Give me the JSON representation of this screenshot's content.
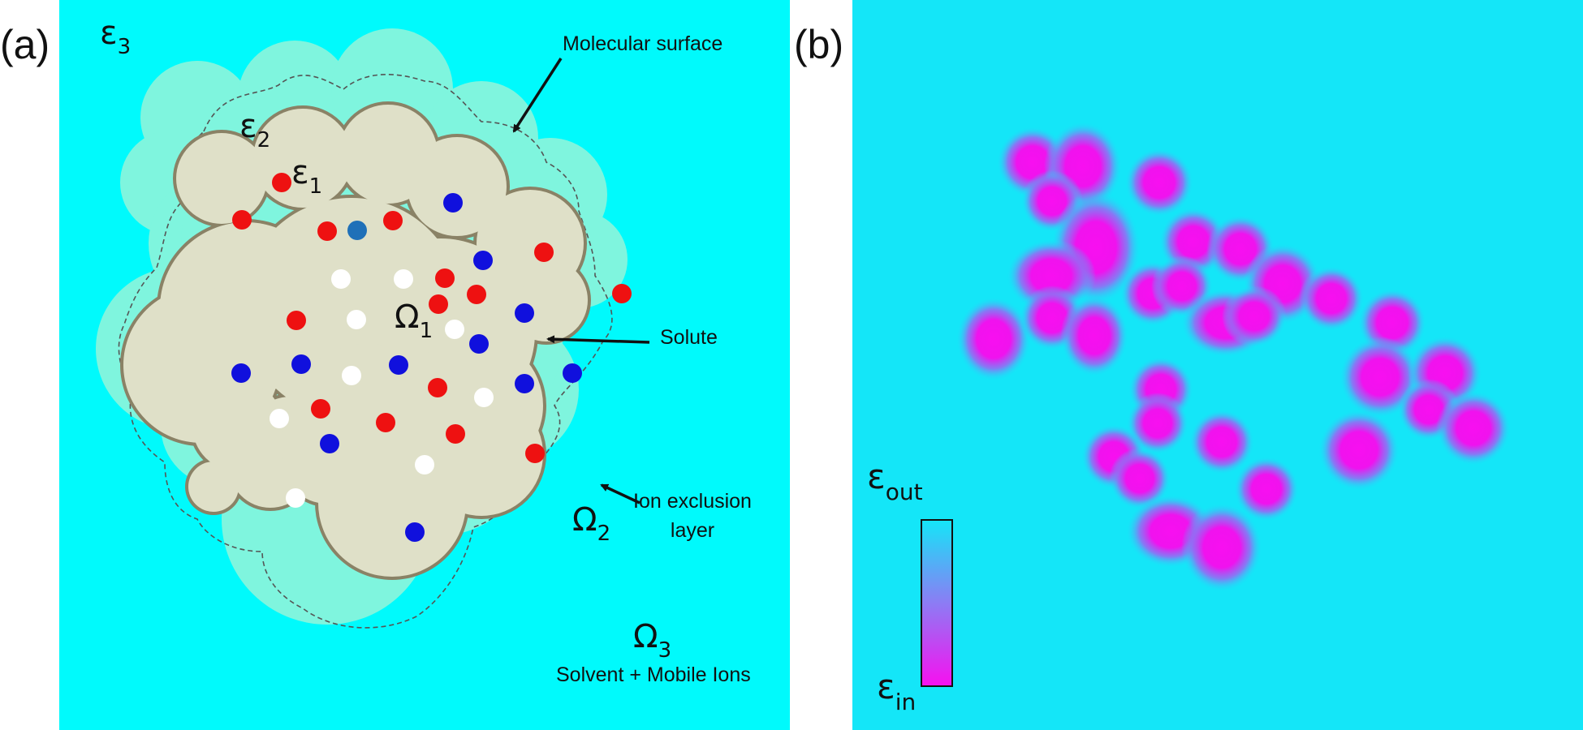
{
  "panel_a": {
    "letter": "(a)",
    "symbols": {
      "eps3": {
        "base": "ε",
        "sub": "3"
      },
      "eps2": {
        "base": "ε",
        "sub": "2"
      },
      "eps1": {
        "base": "ε",
        "sub": "1"
      },
      "omega1": {
        "base": "Ω",
        "sub": "1"
      },
      "omega2": {
        "base": "Ω",
        "sub": "2"
      },
      "omega3": {
        "base": "Ω",
        "sub": "3"
      }
    },
    "labels": {
      "molecular_surface": "Molecular surface",
      "solute": "Solute",
      "ion_exclusion_line1": "Ion exclusion",
      "ion_exclusion_line2": "layer",
      "solvent": "Solvent + Mobile Ions"
    },
    "colors": {
      "solvent": "#00fafc",
      "ion_exclusion_layer": "#7ff5de",
      "solute": "#dfe0c8",
      "surface_outline": "#8a8266",
      "positive_charge": "#ee1111",
      "negative_charge": "#1010dd",
      "neutral_atom": "#ffffff",
      "special_atom": "#1f70b8"
    }
  },
  "panel_b": {
    "letter": "(b)",
    "colorbar": {
      "top_label": {
        "base": "ε",
        "sub": "out"
      },
      "bottom_label": {
        "base": "ε",
        "sub": "in"
      },
      "color_top": "#14e6f8",
      "color_bottom": "#f80ff0"
    },
    "colors": {
      "background": "#14e6f8",
      "low_dielectric": "#f80ff0"
    }
  }
}
